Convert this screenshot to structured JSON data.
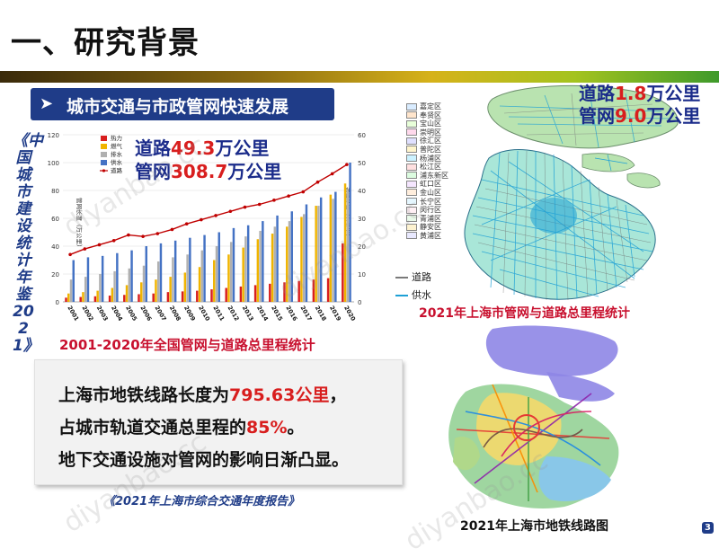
{
  "header": {
    "title": "一、研究背景"
  },
  "subtitle": {
    "label": "城市交通与市政管网快速发展"
  },
  "left_source": "《中国城市建设统计年鉴2021》",
  "national": {
    "road_label": "道路",
    "road_value": "49.3",
    "road_unit": "万公里",
    "pipe_label": "管网",
    "pipe_value": "308.7",
    "pipe_unit": "万公里",
    "caption": "2001-2020年全国管网与道路总里程统计"
  },
  "shanghai": {
    "road_label": "道路",
    "road_value": "1.8",
    "road_unit": "万公里",
    "pipe_label": "管网",
    "pipe_value": "9.0",
    "pipe_unit": "万公里",
    "map_caption": "2021年上海市管网与道路总里程统计",
    "legend": [
      "道路",
      "供水"
    ],
    "districts": [
      "嘉定区",
      "奉贤区",
      "宝山区",
      "崇明区",
      "徐汇区",
      "普陀区",
      "杨浦区",
      "松江区",
      "浦东新区",
      "虹口区",
      "金山区",
      "长宁区",
      "闵行区",
      "青浦区",
      "静安区",
      "黄浦区"
    ],
    "metro_caption": "2021年上海市地铁线路图"
  },
  "metro_text": {
    "l1_a": "上海市地铁线路长度为",
    "l1_num": "795.63公里",
    "l1_b": "，",
    "l2_a": "占城市轨道交通总里程的",
    "l2_num": "85%",
    "l2_b": "。",
    "l3": "地下交通设施对管网的影响日渐凸显。"
  },
  "report_source": "《2021年上海市综合交通年度报告》",
  "page_number": "3",
  "watermark": "diyanbao.cc",
  "colors": {
    "accent_blue": "#1f3c88",
    "highlight_red": "#d81e1e",
    "heat": "#d81e1e",
    "gas": "#f0b400",
    "drain": "#b0b0b0",
    "water": "#4472c4",
    "road": "#c00000"
  },
  "chart_data": {
    "type": "bar",
    "categories": [
      "2001",
      "2002",
      "2003",
      "2004",
      "2005",
      "2006",
      "2007",
      "2008",
      "2009",
      "2010",
      "2011",
      "2012",
      "2013",
      "2014",
      "2015",
      "2016",
      "2017",
      "2018",
      "2019",
      "2020"
    ],
    "ylabel": "管网长度（万公里）",
    "y2label": "道路长度（万公里）",
    "ylim": [
      0,
      120
    ],
    "y2lim": [
      0,
      60
    ],
    "yticks": [
      "0",
      "20",
      "40",
      "60",
      "80",
      "100",
      "120"
    ],
    "y2ticks": [
      "0",
      "10",
      "20",
      "30",
      "40",
      "50",
      "60"
    ],
    "legend_position": "top-left",
    "series": [
      {
        "name": "热力",
        "type": "bar",
        "values": [
          3,
          3.5,
          4,
          4.5,
          5,
          5.5,
          6,
          7,
          7.5,
          8,
          9,
          10,
          11,
          12,
          13,
          14,
          15,
          16,
          17,
          42
        ]
      },
      {
        "name": "燃气",
        "type": "bar",
        "values": [
          6,
          7,
          8,
          10,
          12,
          14,
          16,
          18,
          21,
          25,
          30,
          34,
          39,
          45,
          49,
          54,
          61,
          69,
          77,
          85
        ]
      },
      {
        "name": "排水",
        "type": "bar",
        "values": [
          16,
          18,
          20,
          22,
          24,
          26,
          29,
          32,
          34,
          37,
          40,
          43,
          47,
          51,
          54,
          58,
          63,
          69,
          74,
          80
        ]
      },
      {
        "name": "供水",
        "type": "bar",
        "values": [
          30,
          32,
          33,
          35,
          37,
          40,
          42,
          44,
          46,
          48,
          50,
          53,
          55,
          58,
          62,
          65,
          70,
          75,
          79,
          100
        ]
      },
      {
        "name": "道路",
        "type": "line",
        "axis": "right",
        "values": [
          17,
          19,
          20.5,
          22,
          24,
          23.5,
          24.5,
          26,
          28,
          29.5,
          31,
          32.5,
          34,
          35,
          36.5,
          38,
          39.5,
          43,
          46,
          49.3
        ]
      }
    ]
  }
}
